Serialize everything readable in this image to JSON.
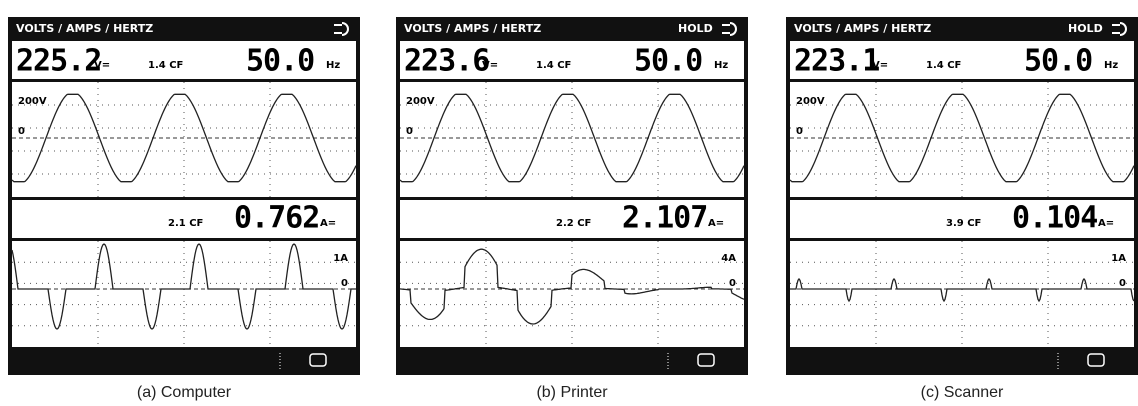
{
  "panels": [
    {
      "header": "VOLTS / AMPS / HERTZ",
      "voltage": "225.2",
      "voltage_unit": "V=",
      "voltage_cf": "1.4 CF",
      "frequency": "50.0",
      "frequency_unit": "Hz",
      "voltage_scale": "200V",
      "voltage_zero": "0",
      "current_cf": "2.1 CF",
      "current": "0.762",
      "current_unit": "A=",
      "current_scale": "1A",
      "current_zero": "0",
      "caption": "(a) Computer"
    },
    {
      "header": "VOLTS / AMPS / HERTZ",
      "hold": "HOLD",
      "voltage": "223.6",
      "voltage_unit": "V=",
      "voltage_cf": "1.4 CF",
      "frequency": "50.0",
      "frequency_unit": "Hz",
      "voltage_scale": "200V",
      "voltage_zero": "0",
      "current_cf": "2.2 CF",
      "current": "2.107",
      "current_unit": "A=",
      "current_scale": "4A",
      "current_zero": "0",
      "caption": "(b) Printer"
    },
    {
      "header": "VOLTS / AMPS / HERTZ",
      "hold": "HOLD",
      "voltage": "223.1",
      "voltage_unit": "V=",
      "voltage_cf": "1.4 CF",
      "frequency": "50.0",
      "frequency_unit": "Hz",
      "voltage_scale": "200V",
      "voltage_zero": "0",
      "current_cf": "3.9 CF",
      "current": "0.104",
      "current_unit": "A=",
      "current_scale": "1A",
      "current_zero": "0",
      "caption": "(c) Scanner"
    }
  ]
}
